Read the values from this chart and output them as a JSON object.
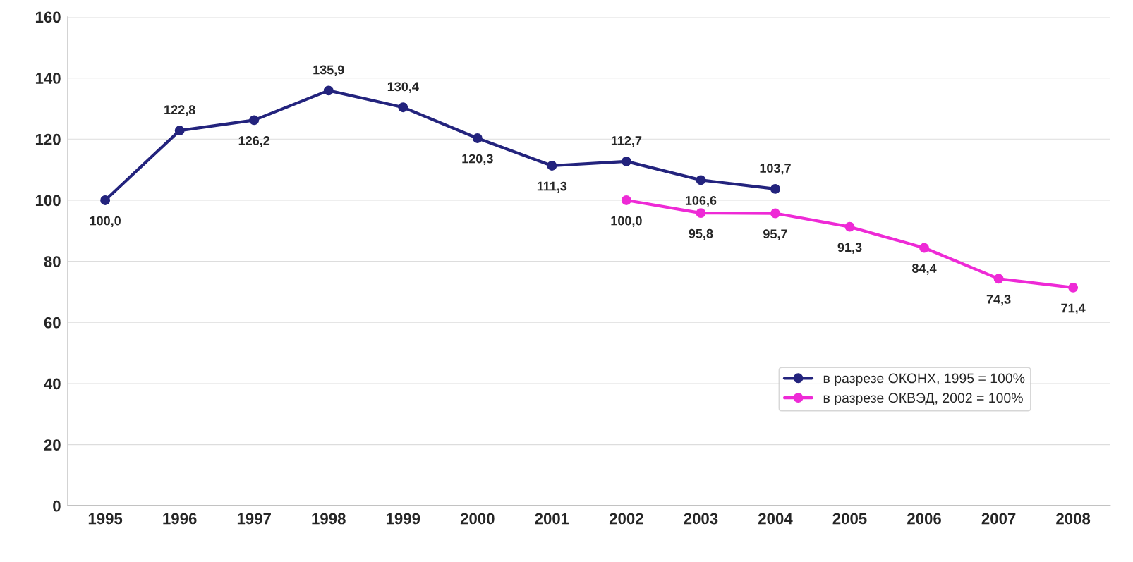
{
  "chart_data": {
    "type": "line",
    "categories": [
      "1995",
      "1996",
      "1997",
      "1998",
      "1999",
      "2000",
      "2001",
      "2002",
      "2003",
      "2004",
      "2005",
      "2006",
      "2007",
      "2008"
    ],
    "series": [
      {
        "name": "в разрезе ОКОНХ, 1995 = 100%",
        "color": "#23237d",
        "values": [
          100.0,
          122.8,
          126.2,
          135.9,
          130.4,
          120.3,
          111.3,
          112.7,
          106.6,
          103.7,
          null,
          null,
          null,
          null
        ],
        "value_labels": [
          "100,0",
          "122,8",
          "126,2",
          "135,9",
          "130,4",
          "120,3",
          "111,3",
          "112,7",
          "106,6",
          "103,7",
          null,
          null,
          null,
          null
        ]
      },
      {
        "name": "в разрезе ОКВЭД, 2002 = 100%",
        "color": "#ee2ad6",
        "values": [
          null,
          null,
          null,
          null,
          null,
          null,
          null,
          100.0,
          95.8,
          95.7,
          91.3,
          84.4,
          74.3,
          71.4
        ],
        "value_labels": [
          null,
          null,
          null,
          null,
          null,
          null,
          null,
          "100,0",
          "95,8",
          "95,7",
          "91,3",
          "84,4",
          "74,3",
          "71,4"
        ]
      }
    ],
    "ylim": [
      0,
      160
    ],
    "yticks": [
      0,
      20,
      40,
      60,
      80,
      100,
      120,
      140,
      160
    ],
    "grid": "y",
    "legend": "lower right",
    "marker": "circle",
    "line_style": "solid"
  }
}
